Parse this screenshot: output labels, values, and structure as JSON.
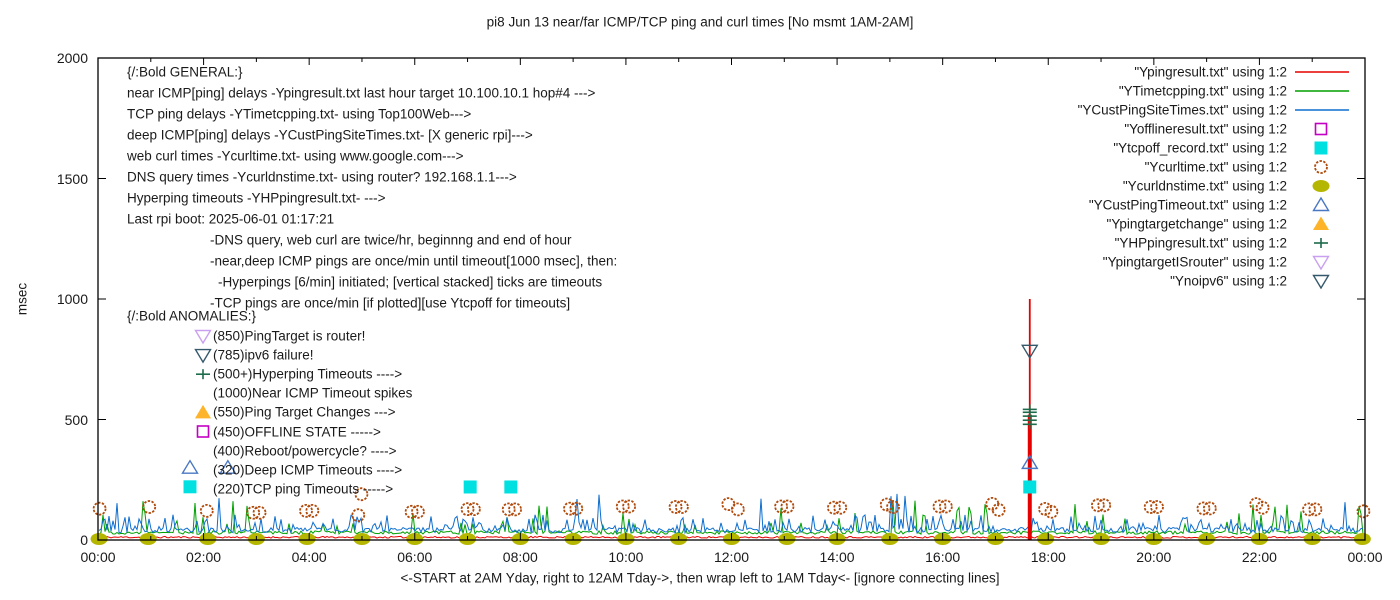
{
  "title": "pi8 Jun 13  near/far ICMP/TCP ping and curl times [No msmt 1AM-2AM]",
  "axes": {
    "ylabel": "msec",
    "xlabel": "<-START at 2AM Yday, right to 12AM Tday->, then wrap left to 1AM Tday<- [ignore connecting lines]",
    "y_tick_labels": [
      "0",
      "500",
      "1000",
      "1500",
      "2000"
    ],
    "x_tick_labels": [
      "00:00",
      "02:00",
      "04:00",
      "06:00",
      "08:00",
      "10:00",
      "12:00",
      "14:00",
      "16:00",
      "18:00",
      "20:00",
      "22:00",
      "00:00"
    ]
  },
  "annotations": {
    "general": [
      {
        "text": "{/:Bold GENERAL:}",
        "indent": 0
      },
      {
        "text": "near ICMP[ping] delays -Ypingresult.txt last hour target 10.100.10.1 hop#4 --->",
        "indent": 0
      },
      {
        "text": "TCP ping delays -YTimetcpping.txt- using Top100Web--->",
        "indent": 0
      },
      {
        "text": "deep ICMP[ping] delays -YCustPingSiteTimes.txt- [X generic rpi]--->",
        "indent": 0
      },
      {
        "text": "web curl times -Ycurltime.txt- using www.google.com--->",
        "indent": 0
      },
      {
        "text": "DNS query times -Ycurldnstime.txt- using router? 192.168.1.1--->",
        "indent": 0
      },
      {
        "text": "Hyperping timeouts -YHPpingresult.txt- --->",
        "indent": 0
      },
      {
        "text": "Last rpi boot: 2025-06-01 01:17:21",
        "indent": 0
      },
      {
        "text": "-DNS query, web curl are twice/hr, beginnng and end of hour",
        "indent": 1
      },
      {
        "text": "-near,deep ICMP pings are once/min until timeout[1000 msec], then:",
        "indent": 1
      },
      {
        "text": "-Hyperpings [6/min] initiated; [vertical stacked] ticks are timeouts",
        "indent": 2
      },
      {
        "text": "-TCP pings are once/min [if plotted][use Ytcpoff for timeouts]",
        "indent": 1
      }
    ],
    "anomalies_header": "{/:Bold ANOMALIES:}",
    "anomalies": [
      {
        "text": "(850)PingTarget is router!",
        "marker": "triangle-down-open",
        "color": "#c9a0f0",
        "marker_col": 1
      },
      {
        "text": "(785)ipv6 failure!",
        "marker": "triangle-down-open",
        "color": "#35596b",
        "marker_col": 1
      },
      {
        "text": "(500+)Hyperping Timeouts ---->",
        "marker": "plus",
        "color": "#1c6b4a",
        "marker_col": 1
      },
      {
        "text": "(1000)Near ICMP Timeout spikes",
        "marker": null,
        "color": null,
        "marker_col": 0
      },
      {
        "text": "(550)Ping Target Changes --->",
        "marker": "triangle-up-filled",
        "color": "#fdb42a",
        "marker_col": 1
      },
      {
        "text": "(450)OFFLINE STATE ----->",
        "marker": "square-open",
        "color": "#c400c4",
        "marker_col": 1
      },
      {
        "text": "(400)Reboot/powercycle? ---->",
        "marker": null,
        "color": null,
        "marker_col": 0
      },
      {
        "text": "(320)Deep ICMP Timeouts ---->",
        "marker": "triangle-up-open",
        "color": "#4a77c4",
        "marker_col": 2
      },
      {
        "text": "(220)TCP ping Timeouts ----->",
        "marker": "square-filled",
        "color": "#00e0e0",
        "marker_col": 2
      }
    ]
  },
  "legend": [
    {
      "label": "\"Ypingresult.txt\" using 1:2",
      "sample": "line",
      "color": "#e60000"
    },
    {
      "label": "\"YTimetcpping.txt\" using 1:2",
      "sample": "line",
      "color": "#00a000"
    },
    {
      "label": "\"YCustPingSiteTimes.txt\" using 1:2",
      "sample": "line",
      "color": "#0e6ece"
    },
    {
      "label": "\"Yofflineresult.txt\" using 1:2",
      "sample": "square-open",
      "color": "#c400c4"
    },
    {
      "label": "\"Ytcpoff_record.txt\" using 1:2",
      "sample": "square-filled",
      "color": "#00e0e0"
    },
    {
      "label": "\"Ycurltime.txt\" using 1:2",
      "sample": "circle-open",
      "color": "#b14a0b"
    },
    {
      "label": "\"Ycurldnstime.txt\" using 1:2",
      "sample": "circle-filled",
      "color": "#b5b600"
    },
    {
      "label": "\"YCustPingTimeout.txt\" using 1:2",
      "sample": "triangle-up-open",
      "color": "#4a77c4"
    },
    {
      "label": "\"Ypingtargetchange\" using 1:2",
      "sample": "triangle-up-filled",
      "color": "#fdb42a"
    },
    {
      "label": "\"YHPpingresult.txt\" using 1:2",
      "sample": "plus",
      "color": "#1c6b4a"
    },
    {
      "label": "\"YpingtargetISrouter\" using 1:2",
      "sample": "triangle-down-open",
      "color": "#c9a0f0"
    },
    {
      "label": "\"Ynoipv6\" using 1:2",
      "sample": "triangle-down-open",
      "color": "#35596b"
    }
  ],
  "chart_data": {
    "type": "line",
    "title": "pi8 Jun 13  near/far ICMP/TCP ping and curl times [No msmt 1AM-2AM]",
    "xlabel": "<-START at 2AM Yday, right to 12AM Tday->, then wrap left to 1AM Tday<- [ignore connecting lines]",
    "ylabel": "msec",
    "x_axis": {
      "unit": "hour of day",
      "range_hours": [
        0,
        24
      ],
      "major_tick_h": 2,
      "minor_tick_h": 1,
      "grid": false
    },
    "y_axis": {
      "range": [
        0,
        2000
      ],
      "ticks": [
        0,
        500,
        1000,
        1500,
        2000
      ]
    },
    "legend_position": "top-right-inside",
    "event_spike": {
      "hour": 17.65,
      "peak_msec": 1000,
      "color": "#e60000"
    },
    "series": [
      {
        "name": "\"Ypingresult.txt\" using 1:2",
        "style": "line",
        "color": "#e60000",
        "baseline_msec": 11,
        "noise_msec": 6,
        "note": "near ICMP ping; flat ~10 msec with one timeout spike to 1000 msec at ~17:39"
      },
      {
        "name": "\"YTimetcpping.txt\" using 1:2",
        "style": "line",
        "color": "#00a000",
        "baseline_msec": 30,
        "noise_msec": 12,
        "spikes_up_to_msec": 160,
        "note": "TCP ping times; noisy with frequent spikes 60-160 msec"
      },
      {
        "name": "\"YCustPingSiteTimes.txt\" using 1:2",
        "style": "line",
        "color": "#0e6ece",
        "baseline_msec": 42,
        "noise_msec": 18,
        "spikes_up_to_msec": 180,
        "note": "deep ICMP ping times; dense noise band 20-110 msec"
      },
      {
        "name": "\"Yofflineresult.txt\" using 1:2",
        "style": "points",
        "marker": "square-open",
        "color": "#c400c4",
        "points_h_msec": []
      },
      {
        "name": "\"Ytcpoff_record.txt\" using 1:2",
        "style": "points",
        "marker": "square-filled",
        "color": "#00e0e0",
        "points_h_msec": [
          [
            7.05,
            220
          ],
          [
            7.82,
            220
          ],
          [
            17.65,
            220
          ]
        ]
      },
      {
        "name": "\"Ycurltime.txt\" using 1:2",
        "style": "points",
        "marker": "circle-open",
        "color": "#b14a0b",
        "points_h_msec": [
          [
            0.03,
            130
          ],
          [
            0.97,
            137
          ],
          [
            2.06,
            121
          ],
          [
            2.94,
            113
          ],
          [
            3.06,
            113
          ],
          [
            3.94,
            121
          ],
          [
            4.06,
            121
          ],
          [
            4.93,
            103
          ],
          [
            4.99,
            190
          ],
          [
            5.94,
            117
          ],
          [
            6.06,
            117
          ],
          [
            7.0,
            128
          ],
          [
            7.12,
            128
          ],
          [
            7.78,
            127
          ],
          [
            7.9,
            127
          ],
          [
            8.94,
            130
          ],
          [
            9.06,
            130
          ],
          [
            9.94,
            139
          ],
          [
            10.06,
            139
          ],
          [
            10.94,
            137
          ],
          [
            11.06,
            137
          ],
          [
            11.94,
            149
          ],
          [
            12.12,
            127
          ],
          [
            12.94,
            139
          ],
          [
            13.06,
            139
          ],
          [
            13.94,
            134
          ],
          [
            14.06,
            134
          ],
          [
            14.94,
            147
          ],
          [
            15.06,
            137
          ],
          [
            15.94,
            139
          ],
          [
            16.06,
            139
          ],
          [
            16.94,
            150
          ],
          [
            17.06,
            125
          ],
          [
            17.94,
            129
          ],
          [
            18.06,
            117
          ],
          [
            18.94,
            144
          ],
          [
            19.06,
            144
          ],
          [
            19.94,
            137
          ],
          [
            20.06,
            137
          ],
          [
            20.94,
            131
          ],
          [
            21.06,
            131
          ],
          [
            21.94,
            149
          ],
          [
            22.06,
            134
          ],
          [
            22.94,
            127
          ],
          [
            23.06,
            127
          ],
          [
            23.97,
            119
          ]
        ]
      },
      {
        "name": "\"Ycurldnstime.txt\" using 1:2",
        "style": "points",
        "marker": "circle-filled",
        "color": "#b5b600",
        "points_h_msec": [
          [
            0.02,
            4
          ],
          [
            0.95,
            4
          ],
          [
            2.08,
            4
          ],
          [
            3.0,
            4
          ],
          [
            3.96,
            4
          ],
          [
            5.0,
            4
          ],
          [
            6.0,
            4
          ],
          [
            7.0,
            4
          ],
          [
            8.0,
            4
          ],
          [
            9.0,
            4
          ],
          [
            10.0,
            4
          ],
          [
            11.0,
            4
          ],
          [
            12.0,
            4
          ],
          [
            13.05,
            4
          ],
          [
            14.0,
            4
          ],
          [
            15.0,
            4
          ],
          [
            16.0,
            4
          ],
          [
            17.0,
            4
          ],
          [
            17.95,
            4
          ],
          [
            19.0,
            4
          ],
          [
            20.0,
            4
          ],
          [
            21.0,
            4
          ],
          [
            22.0,
            4
          ],
          [
            23.0,
            4
          ],
          [
            23.95,
            4
          ]
        ]
      },
      {
        "name": "\"YCustPingTimeout.txt\" using 1:2",
        "style": "points",
        "marker": "triangle-up-open",
        "color": "#4a77c4",
        "points_h_msec": [
          [
            2.46,
            300
          ],
          [
            17.65,
            320
          ]
        ]
      },
      {
        "name": "\"Ypingtargetchange\" using 1:2",
        "style": "points",
        "marker": "triangle-up-filled",
        "color": "#fdb42a",
        "points_h_msec": []
      },
      {
        "name": "\"YHPpingresult.txt\" using 1:2",
        "style": "points",
        "marker": "plus",
        "color": "#1c6b4a",
        "points_h_msec": [
          [
            17.65,
            480
          ],
          [
            17.65,
            497
          ],
          [
            17.65,
            514
          ],
          [
            17.65,
            530
          ],
          [
            17.65,
            542
          ]
        ]
      },
      {
        "name": "\"YpingtargetISrouter\" using 1:2",
        "style": "points",
        "marker": "triangle-down-open",
        "color": "#c9a0f0",
        "points_h_msec": []
      },
      {
        "name": "\"Ynoipv6\" using 1:2",
        "style": "points",
        "marker": "triangle-down-open",
        "color": "#35596b",
        "points_h_msec": [
          [
            17.65,
            785
          ]
        ]
      }
    ]
  }
}
